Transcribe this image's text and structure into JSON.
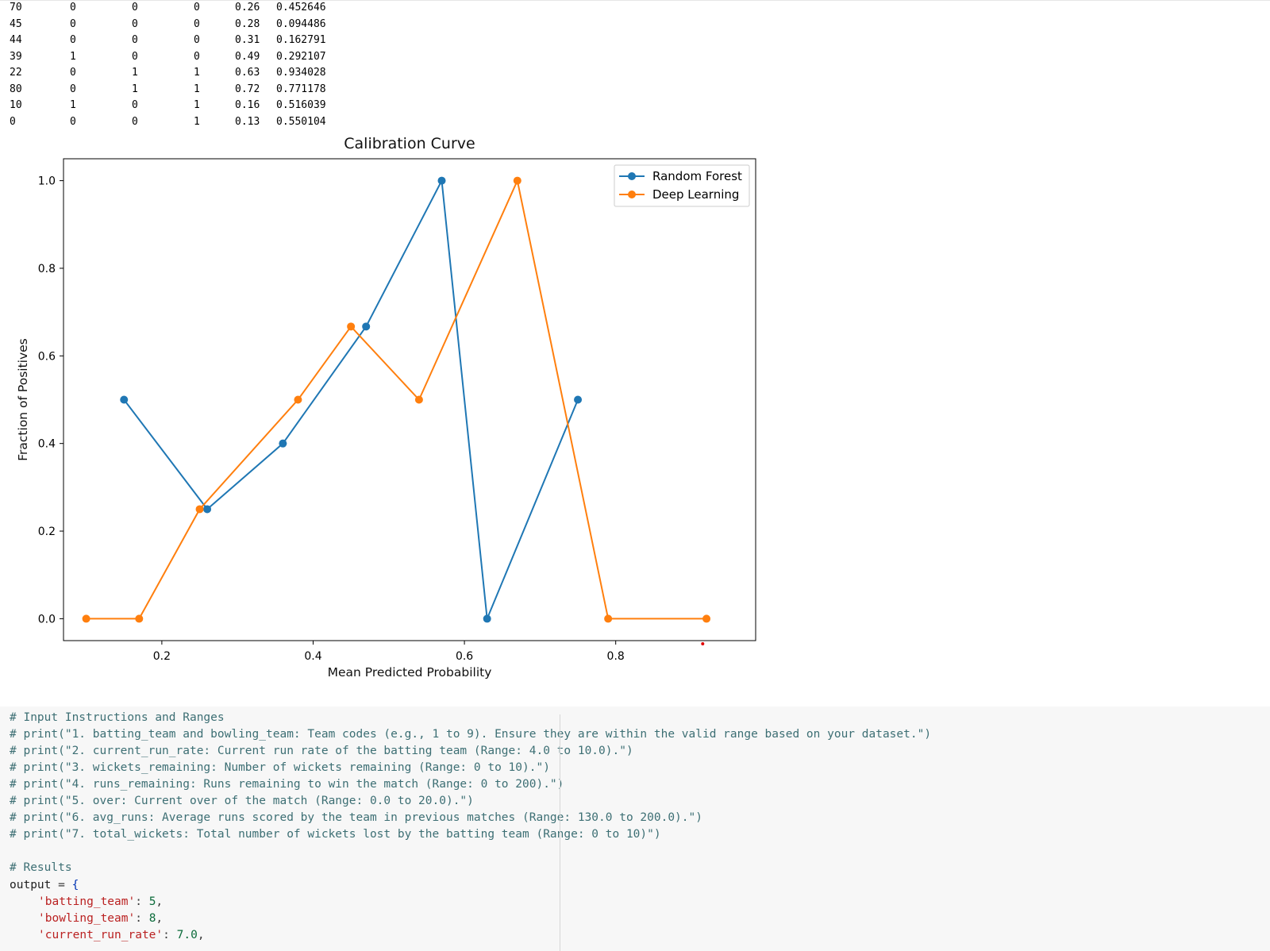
{
  "table": {
    "rows": [
      [
        "70",
        "0",
        "0",
        "0",
        "0.26",
        "0.452646"
      ],
      [
        "45",
        "0",
        "0",
        "0",
        "0.28",
        "0.094486"
      ],
      [
        "44",
        "0",
        "0",
        "0",
        "0.31",
        "0.162791"
      ],
      [
        "39",
        "1",
        "0",
        "0",
        "0.49",
        "0.292107"
      ],
      [
        "22",
        "0",
        "1",
        "1",
        "0.63",
        "0.934028"
      ],
      [
        "80",
        "0",
        "1",
        "1",
        "0.72",
        "0.771178"
      ],
      [
        "10",
        "1",
        "0",
        "1",
        "0.16",
        "0.516039"
      ],
      [
        "0",
        "0",
        "0",
        "1",
        "0.13",
        "0.550104"
      ]
    ]
  },
  "chart_data": {
    "type": "line",
    "title": "Calibration Curve",
    "xlabel": "Mean Predicted Probability",
    "ylabel": "Fraction of Positives",
    "xlim": [
      0.07,
      0.985
    ],
    "ylim": [
      -0.05,
      1.05
    ],
    "xticks": [
      0.2,
      0.4,
      0.6,
      0.8
    ],
    "yticks": [
      0.0,
      0.2,
      0.4,
      0.6,
      0.8,
      1.0
    ],
    "xtick_labels": [
      "0.2",
      "0.4",
      "0.6",
      "0.8"
    ],
    "ytick_labels": [
      "0.0",
      "0.2",
      "0.4",
      "0.6",
      "0.8",
      "1.0"
    ],
    "legend_position": "top-right",
    "grid": false,
    "series": [
      {
        "name": "Random Forest",
        "color": "#1f77b4",
        "x": [
          0.15,
          0.26,
          0.36,
          0.47,
          0.57,
          0.63,
          0.75
        ],
        "y": [
          0.5,
          0.25,
          0.4,
          0.667,
          1.0,
          0.0,
          0.5
        ]
      },
      {
        "name": "Deep Learning",
        "color": "#ff7f0e",
        "x": [
          0.1,
          0.17,
          0.25,
          0.38,
          0.45,
          0.54,
          0.67,
          0.79,
          0.92
        ],
        "y": [
          0.0,
          0.0,
          0.25,
          0.5,
          0.667,
          0.5,
          1.0,
          0.0,
          0.0
        ]
      }
    ]
  },
  "code": {
    "lines": [
      "# Input Instructions and Ranges",
      "# print(\"1. batting_team and bowling_team: Team codes (e.g., 1 to 9). Ensure they are within the valid range based on your dataset.\")",
      "# print(\"2. current_run_rate: Current run rate of the batting team (Range: 4.0 to 10.0).\")",
      "# print(\"3. wickets_remaining: Number of wickets remaining (Range: 0 to 10).\")",
      "# print(\"4. runs_remaining: Runs remaining to win the match (Range: 0 to 200).\")",
      "# print(\"5. over: Current over of the match (Range: 0.0 to 20.0).\")",
      "# print(\"6. avg_runs: Average runs scored by the team in previous matches (Range: 130.0 to 200.0).\")",
      "# print(\"7. total_wickets: Total number of wickets lost by the batting team (Range: 0 to 10)\")",
      "",
      "# Results"
    ],
    "output_var": "output",
    "assign": " = ",
    "open_brace": "{",
    "entries": [
      {
        "key": "'batting_team'",
        "value": "5"
      },
      {
        "key": "'bowling_team'",
        "value": "8"
      },
      {
        "key": "'current_run_rate'",
        "value": "7.0"
      }
    ]
  }
}
